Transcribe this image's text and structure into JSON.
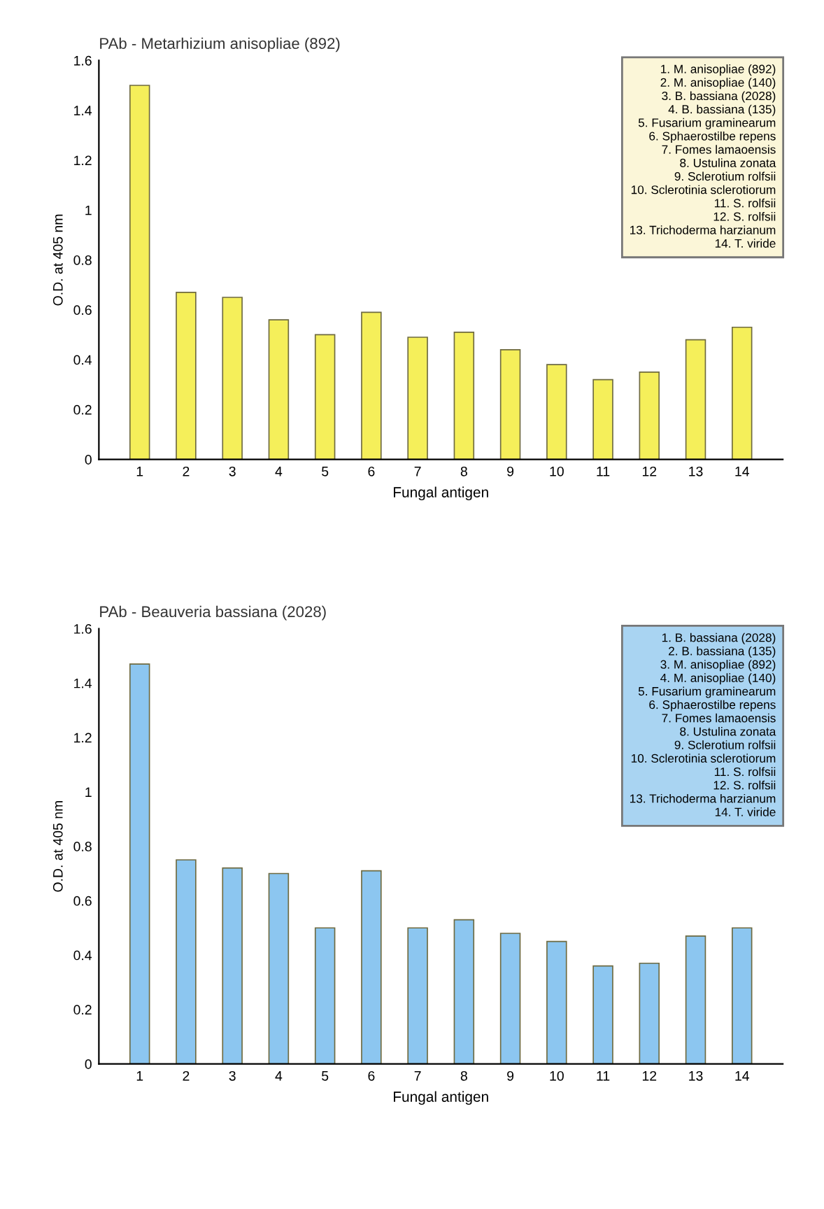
{
  "chart_data": [
    {
      "type": "bar",
      "title": "PAb - Metarhizium anisopliae (892)",
      "xlabel": "Fungal antigen",
      "ylabel": "O.D. at 405 nm",
      "categories": [
        "1",
        "2",
        "3",
        "4",
        "5",
        "6",
        "7",
        "8",
        "9",
        "10",
        "11",
        "12",
        "13",
        "14"
      ],
      "values": [
        1.5,
        0.67,
        0.65,
        0.56,
        0.5,
        0.59,
        0.49,
        0.51,
        0.44,
        0.38,
        0.32,
        0.35,
        0.48,
        0.53
      ],
      "color": "#f5ef5a",
      "ylim": [
        0,
        1.6
      ],
      "yticks": [
        0,
        0.2,
        0.4,
        0.6,
        0.8,
        1,
        1.2,
        1.4,
        1.6
      ],
      "grid": false,
      "annotations": [
        "1. M. anisopliae (892)\n2. M. anisopliae (140)\n3. B. bassiana (2028)\n4. B. bassiana (135)\n5. Fusarium graminearum\n6. Sphaerostilbe repens\n7. Fomes lamaoensis\n8. Ustulina zonata\n9. Sclerotium rolfsii\n10. Sclerotinia sclerotiorum\n11. S. rolfsii\n12. S. rolfsii\n13. Trichoderma harzianum\n14. T. viride"
      ]
    },
    {
      "type": "bar",
      "title": "PAb - Beauveria bassiana (2028)",
      "xlabel": "Fungal antigen",
      "ylabel": "O.D. at 405 nm",
      "categories": [
        "1",
        "2",
        "3",
        "4",
        "5",
        "6",
        "7",
        "8",
        "9",
        "10",
        "11",
        "12",
        "13",
        "14"
      ],
      "values": [
        1.47,
        0.75,
        0.72,
        0.7,
        0.5,
        0.71,
        0.5,
        0.53,
        0.48,
        0.45,
        0.36,
        0.37,
        0.47,
        0.5
      ],
      "color": "#8cc6f0",
      "ylim": [
        0,
        1.6
      ],
      "yticks": [
        0,
        0.2,
        0.4,
        0.6,
        0.8,
        1,
        1.2,
        1.4,
        1.6
      ],
      "grid": false,
      "annotations": [
        "1. B. bassiana (2028)\n2. B. bassiana (135)\n3. M. anisopliae (892)\n4. M. anisopliae (140)\n5. Fusarium graminearum\n6. Sphaerostilbe repens\n7. Fomes lamaoensis\n8. Ustulina zonata\n9. Sclerotium rolfsii\n10. Sclerotinia sclerotiorum\n11. S. rolfsii\n12. S. rolfsii\n13. Trichoderma harzianum\n14. T. viride"
      ]
    }
  ]
}
